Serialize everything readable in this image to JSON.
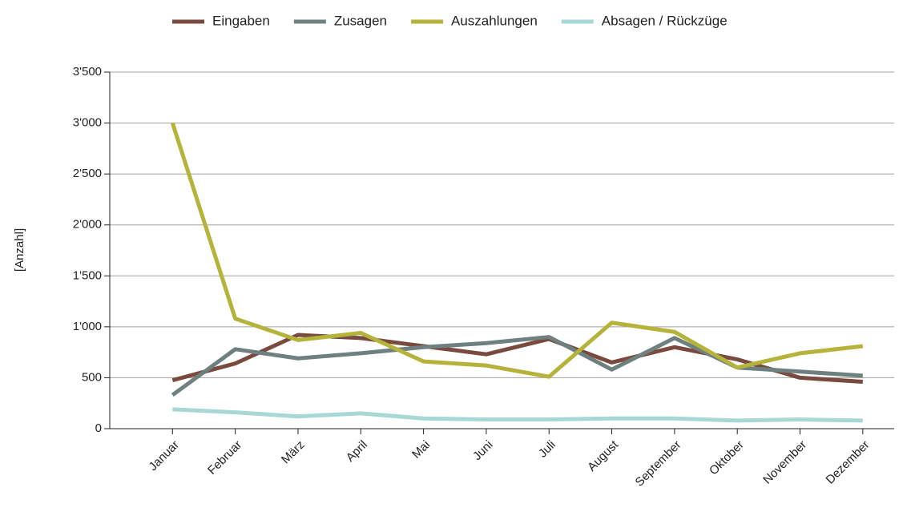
{
  "chart_data": {
    "type": "line",
    "y_label": "[Anzahl]",
    "categories": [
      "Januar",
      "Februar",
      "März",
      "April",
      "Mai",
      "Juni",
      "Juli",
      "August",
      "September",
      "Oktober",
      "November",
      "Dezember"
    ],
    "series": [
      {
        "name": "Eingaben",
        "color": "#7b4a3e",
        "values": [
          475,
          640,
          920,
          890,
          810,
          730,
          880,
          650,
          800,
          680,
          500,
          460
        ]
      },
      {
        "name": "Zusagen",
        "color": "#6e8080",
        "values": [
          330,
          780,
          690,
          740,
          800,
          840,
          900,
          580,
          890,
          600,
          560,
          520
        ]
      },
      {
        "name": "Auszahlungen",
        "color": "#b5b33a",
        "values": [
          3000,
          1080,
          870,
          940,
          660,
          620,
          510,
          1040,
          950,
          600,
          740,
          810
        ]
      },
      {
        "name": "Absagen / Rückzüge",
        "color": "#a8d8d4",
        "values": [
          190,
          160,
          120,
          150,
          100,
          90,
          90,
          100,
          100,
          80,
          90,
          80
        ]
      }
    ],
    "ylim": [
      0,
      3500
    ],
    "yticks": [
      0,
      500,
      {
        "value": 1000,
        "label": "1'000"
      },
      {
        "value": 1500,
        "label": "1'500"
      },
      {
        "value": 2000,
        "label": "2'000"
      },
      {
        "value": 2500,
        "label": "2'500"
      },
      {
        "value": 3000,
        "label": "3'000"
      },
      {
        "value": 3500,
        "label": "3'500"
      }
    ],
    "grid": true,
    "legend": "top"
  }
}
